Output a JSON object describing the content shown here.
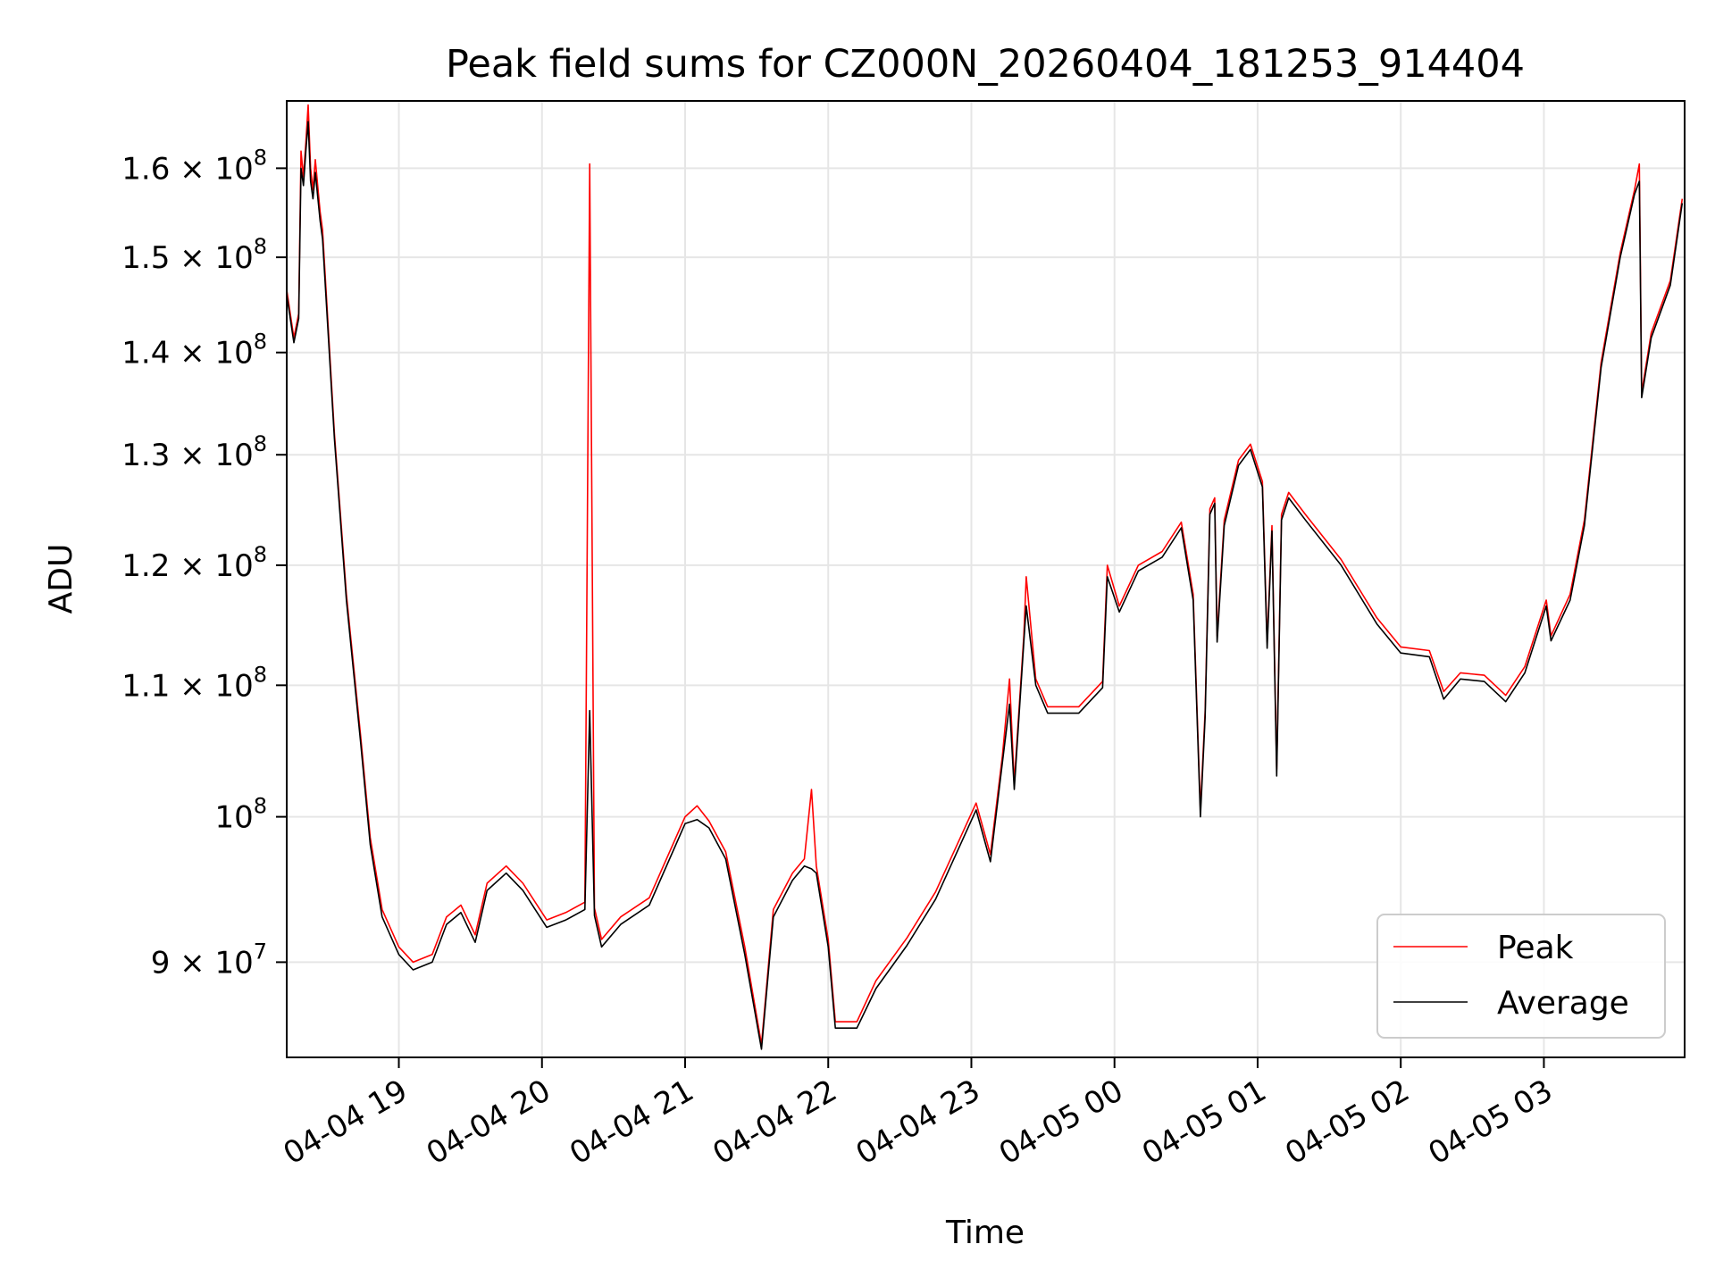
{
  "chart_data": {
    "type": "line",
    "title": "Peak field sums for CZ000N_20260404_181253_914404",
    "xlabel": "Time",
    "ylabel": "ADU",
    "yscale": "log",
    "xlim": [
      "2026-04-04 18:13",
      "2026-04-05 03:59"
    ],
    "ylim": [
      84000000,
      168000000
    ],
    "grid": true,
    "legend_position": "lower-right",
    "x_ticks": [
      {
        "value": "2026-04-04 19:00",
        "label": "04-04 19"
      },
      {
        "value": "2026-04-04 20:00",
        "label": "04-04 20"
      },
      {
        "value": "2026-04-04 21:00",
        "label": "04-04 21"
      },
      {
        "value": "2026-04-04 22:00",
        "label": "04-04 22"
      },
      {
        "value": "2026-04-04 23:00",
        "label": "04-04 23"
      },
      {
        "value": "2026-04-05 00:00",
        "label": "04-05 00"
      },
      {
        "value": "2026-04-05 01:00",
        "label": "04-05 01"
      },
      {
        "value": "2026-04-05 02:00",
        "label": "04-05 02"
      },
      {
        "value": "2026-04-05 03:00",
        "label": "04-05 03"
      }
    ],
    "y_ticks": [
      {
        "value": 90000000,
        "mant": "9",
        "sep": " × ",
        "exp": "7"
      },
      {
        "value": 100000000,
        "mant": "",
        "sep": "",
        "exp": "8"
      },
      {
        "value": 110000000,
        "mant": "1.1",
        "sep": " × ",
        "exp": "8"
      },
      {
        "value": 120000000,
        "mant": "1.2",
        "sep": " × ",
        "exp": "8"
      },
      {
        "value": 130000000,
        "mant": "1.3",
        "sep": " × ",
        "exp": "8"
      },
      {
        "value": 140000000,
        "mant": "1.4",
        "sep": " × ",
        "exp": "8"
      },
      {
        "value": 150000000,
        "mant": "1.5",
        "sep": " × ",
        "exp": "8"
      },
      {
        "value": 160000000,
        "mant": "1.6",
        "sep": " × ",
        "exp": "8"
      }
    ],
    "series": [
      {
        "name": "Peak",
        "color": "#ff0000",
        "points": [
          [
            "2026-04-04 18:13",
            146500000
          ],
          [
            "2026-04-04 18:16",
            141500000
          ],
          [
            "2026-04-04 18:18",
            144000000
          ],
          [
            "2026-04-04 18:19",
            162000000
          ],
          [
            "2026-04-04 18:20",
            159000000
          ],
          [
            "2026-04-04 18:21",
            163000000
          ],
          [
            "2026-04-04 18:22",
            167500000
          ],
          [
            "2026-04-04 18:23",
            160000000
          ],
          [
            "2026-04-04 18:24",
            157500000
          ],
          [
            "2026-04-04 18:25",
            161000000
          ],
          [
            "2026-04-04 18:27",
            155000000
          ],
          [
            "2026-04-04 18:28",
            153000000
          ],
          [
            "2026-04-04 18:33",
            132000000
          ],
          [
            "2026-04-04 18:38",
            117500000
          ],
          [
            "2026-04-04 18:44",
            106000000
          ],
          [
            "2026-04-04 18:48",
            98500000
          ],
          [
            "2026-04-04 18:53",
            93500000
          ],
          [
            "2026-04-04 19:00",
            91000000
          ],
          [
            "2026-04-04 19:06",
            90000000
          ],
          [
            "2026-04-04 19:14",
            90500000
          ],
          [
            "2026-04-04 19:20",
            93000000
          ],
          [
            "2026-04-04 19:26",
            93800000
          ],
          [
            "2026-04-04 19:32",
            91800000
          ],
          [
            "2026-04-04 19:37",
            95300000
          ],
          [
            "2026-04-04 19:45",
            96500000
          ],
          [
            "2026-04-04 19:52",
            95300000
          ],
          [
            "2026-04-04 20:02",
            92800000
          ],
          [
            "2026-04-04 20:10",
            93300000
          ],
          [
            "2026-04-04 20:18",
            94000000
          ],
          [
            "2026-04-04 20:20",
            160500000
          ],
          [
            "2026-04-04 20:22",
            93600000
          ],
          [
            "2026-04-04 20:25",
            91500000
          ],
          [
            "2026-04-04 20:33",
            93000000
          ],
          [
            "2026-04-04 20:45",
            94300000
          ],
          [
            "2026-04-04 21:00",
            100000000
          ],
          [
            "2026-04-04 21:05",
            100800000
          ],
          [
            "2026-04-04 21:10",
            99700000
          ],
          [
            "2026-04-04 21:17",
            97500000
          ],
          [
            "2026-04-04 21:25",
            91000000
          ],
          [
            "2026-04-04 21:32",
            84800000
          ],
          [
            "2026-04-04 21:37",
            93500000
          ],
          [
            "2026-04-04 21:45",
            96000000
          ],
          [
            "2026-04-04 21:50",
            97000000
          ],
          [
            "2026-04-04 21:53",
            102000000
          ],
          [
            "2026-04-04 21:55",
            96500000
          ],
          [
            "2026-04-04 22:00",
            91500000
          ],
          [
            "2026-04-04 22:03",
            86200000
          ],
          [
            "2026-04-04 22:12",
            86200000
          ],
          [
            "2026-04-04 22:20",
            88800000
          ],
          [
            "2026-04-04 22:33",
            91600000
          ],
          [
            "2026-04-04 22:45",
            94700000
          ],
          [
            "2026-04-04 23:02",
            101000000
          ],
          [
            "2026-04-04 23:08",
            97300000
          ],
          [
            "2026-04-04 23:13",
            104500000
          ],
          [
            "2026-04-04 23:16",
            110500000
          ],
          [
            "2026-04-04 23:18",
            102500000
          ],
          [
            "2026-04-04 23:22",
            114000000
          ],
          [
            "2026-04-04 23:23",
            119000000
          ],
          [
            "2026-04-04 23:27",
            110500000
          ],
          [
            "2026-04-04 23:32",
            108300000
          ],
          [
            "2026-04-04 23:45",
            108300000
          ],
          [
            "2026-04-04 23:55",
            110300000
          ],
          [
            "2026-04-04 23:57",
            120000000
          ],
          [
            "2026-04-05 00:02",
            116500000
          ],
          [
            "2026-04-05 00:10",
            120000000
          ],
          [
            "2026-04-05 00:20",
            121200000
          ],
          [
            "2026-04-05 00:28",
            123800000
          ],
          [
            "2026-04-05 00:33",
            117500000
          ],
          [
            "2026-04-05 00:36",
            100500000
          ],
          [
            "2026-04-05 00:38",
            108000000
          ],
          [
            "2026-04-05 00:40",
            125000000
          ],
          [
            "2026-04-05 00:42",
            126000000
          ],
          [
            "2026-04-05 00:43",
            114000000
          ],
          [
            "2026-04-05 00:46",
            124000000
          ],
          [
            "2026-04-05 00:52",
            129500000
          ],
          [
            "2026-04-05 00:57",
            131000000
          ],
          [
            "2026-04-05 01:02",
            127500000
          ],
          [
            "2026-04-05 01:04",
            113500000
          ],
          [
            "2026-04-05 01:06",
            123500000
          ],
          [
            "2026-04-05 01:08",
            103500000
          ],
          [
            "2026-04-05 01:10",
            124500000
          ],
          [
            "2026-04-05 01:13",
            126500000
          ],
          [
            "2026-04-05 01:20",
            124500000
          ],
          [
            "2026-04-05 01:35",
            120500000
          ],
          [
            "2026-04-05 01:50",
            115500000
          ],
          [
            "2026-04-05 02:00",
            113100000
          ],
          [
            "2026-04-05 02:12",
            112800000
          ],
          [
            "2026-04-05 02:18",
            109500000
          ],
          [
            "2026-04-05 02:25",
            111000000
          ],
          [
            "2026-04-05 02:35",
            110800000
          ],
          [
            "2026-04-05 02:44",
            109200000
          ],
          [
            "2026-04-05 02:52",
            111500000
          ],
          [
            "2026-04-05 03:01",
            117000000
          ],
          [
            "2026-04-05 03:03",
            114000000
          ],
          [
            "2026-04-05 03:11",
            117500000
          ],
          [
            "2026-04-05 03:17",
            124000000
          ],
          [
            "2026-04-05 03:24",
            139000000
          ],
          [
            "2026-04-05 03:32",
            150500000
          ],
          [
            "2026-04-05 03:38",
            157500000
          ],
          [
            "2026-04-05 03:40",
            160500000
          ],
          [
            "2026-04-05 03:41",
            136000000
          ],
          [
            "2026-04-05 03:45",
            142000000
          ],
          [
            "2026-04-05 03:53",
            147500000
          ],
          [
            "2026-04-05 03:58",
            156500000
          ]
        ]
      },
      {
        "name": "Average",
        "color": "#000000",
        "points": [
          [
            "2026-04-04 18:13",
            146000000
          ],
          [
            "2026-04-04 18:16",
            141000000
          ],
          [
            "2026-04-04 18:18",
            143500000
          ],
          [
            "2026-04-04 18:19",
            160000000
          ],
          [
            "2026-04-04 18:20",
            158000000
          ],
          [
            "2026-04-04 18:21",
            162000000
          ],
          [
            "2026-04-04 18:22",
            165500000
          ],
          [
            "2026-04-04 18:23",
            158500000
          ],
          [
            "2026-04-04 18:24",
            156500000
          ],
          [
            "2026-04-04 18:25",
            159500000
          ],
          [
            "2026-04-04 18:27",
            154000000
          ],
          [
            "2026-04-04 18:28",
            152000000
          ],
          [
            "2026-04-04 18:33",
            131500000
          ],
          [
            "2026-04-04 18:38",
            117000000
          ],
          [
            "2026-04-04 18:44",
            105500000
          ],
          [
            "2026-04-04 18:48",
            98000000
          ],
          [
            "2026-04-04 18:53",
            93000000
          ],
          [
            "2026-04-04 19:00",
            90500000
          ],
          [
            "2026-04-04 19:06",
            89500000
          ],
          [
            "2026-04-04 19:14",
            90000000
          ],
          [
            "2026-04-04 19:20",
            92500000
          ],
          [
            "2026-04-04 19:26",
            93300000
          ],
          [
            "2026-04-04 19:32",
            91300000
          ],
          [
            "2026-04-04 19:37",
            94800000
          ],
          [
            "2026-04-04 19:45",
            96000000
          ],
          [
            "2026-04-04 19:52",
            94800000
          ],
          [
            "2026-04-04 20:02",
            92300000
          ],
          [
            "2026-04-04 20:10",
            92800000
          ],
          [
            "2026-04-04 20:18",
            93500000
          ],
          [
            "2026-04-04 20:20",
            108000000
          ],
          [
            "2026-04-04 20:22",
            93100000
          ],
          [
            "2026-04-04 20:25",
            91000000
          ],
          [
            "2026-04-04 20:33",
            92500000
          ],
          [
            "2026-04-04 20:45",
            93800000
          ],
          [
            "2026-04-04 21:00",
            99500000
          ],
          [
            "2026-04-04 21:05",
            99800000
          ],
          [
            "2026-04-04 21:10",
            99200000
          ],
          [
            "2026-04-04 21:17",
            97000000
          ],
          [
            "2026-04-04 21:25",
            90500000
          ],
          [
            "2026-04-04 21:32",
            84500000
          ],
          [
            "2026-04-04 21:37",
            93000000
          ],
          [
            "2026-04-04 21:45",
            95500000
          ],
          [
            "2026-04-04 21:50",
            96500000
          ],
          [
            "2026-04-04 21:53",
            96300000
          ],
          [
            "2026-04-04 21:55",
            96000000
          ],
          [
            "2026-04-04 22:00",
            91000000
          ],
          [
            "2026-04-04 22:03",
            85800000
          ],
          [
            "2026-04-04 22:12",
            85800000
          ],
          [
            "2026-04-04 22:20",
            88300000
          ],
          [
            "2026-04-04 22:33",
            91100000
          ],
          [
            "2026-04-04 22:45",
            94200000
          ],
          [
            "2026-04-04 23:02",
            100500000
          ],
          [
            "2026-04-04 23:08",
            96800000
          ],
          [
            "2026-04-04 23:13",
            104000000
          ],
          [
            "2026-04-04 23:16",
            108500000
          ],
          [
            "2026-04-04 23:18",
            102000000
          ],
          [
            "2026-04-04 23:22",
            113500000
          ],
          [
            "2026-04-04 23:23",
            116500000
          ],
          [
            "2026-04-04 23:27",
            110000000
          ],
          [
            "2026-04-04 23:32",
            107800000
          ],
          [
            "2026-04-04 23:45",
            107800000
          ],
          [
            "2026-04-04 23:55",
            109800000
          ],
          [
            "2026-04-04 23:57",
            119000000
          ],
          [
            "2026-04-05 00:02",
            116000000
          ],
          [
            "2026-04-05 00:10",
            119500000
          ],
          [
            "2026-04-05 00:20",
            120700000
          ],
          [
            "2026-04-05 00:28",
            123300000
          ],
          [
            "2026-04-05 00:33",
            117000000
          ],
          [
            "2026-04-05 00:36",
            100000000
          ],
          [
            "2026-04-05 00:38",
            107500000
          ],
          [
            "2026-04-05 00:40",
            124500000
          ],
          [
            "2026-04-05 00:42",
            125500000
          ],
          [
            "2026-04-05 00:43",
            113500000
          ],
          [
            "2026-04-05 00:46",
            123500000
          ],
          [
            "2026-04-05 00:52",
            129000000
          ],
          [
            "2026-04-05 00:57",
            130500000
          ],
          [
            "2026-04-05 01:02",
            127000000
          ],
          [
            "2026-04-05 01:04",
            113000000
          ],
          [
            "2026-04-05 01:06",
            123000000
          ],
          [
            "2026-04-05 01:08",
            103000000
          ],
          [
            "2026-04-05 01:10",
            124000000
          ],
          [
            "2026-04-05 01:13",
            126000000
          ],
          [
            "2026-04-05 01:20",
            124000000
          ],
          [
            "2026-04-05 01:35",
            120000000
          ],
          [
            "2026-04-05 01:50",
            115000000
          ],
          [
            "2026-04-05 02:00",
            112600000
          ],
          [
            "2026-04-05 02:12",
            112300000
          ],
          [
            "2026-04-05 02:18",
            108900000
          ],
          [
            "2026-04-05 02:25",
            110500000
          ],
          [
            "2026-04-05 02:35",
            110300000
          ],
          [
            "2026-04-05 02:44",
            108700000
          ],
          [
            "2026-04-05 02:52",
            111000000
          ],
          [
            "2026-04-05 03:01",
            116500000
          ],
          [
            "2026-04-05 03:03",
            113600000
          ],
          [
            "2026-04-05 03:11",
            117000000
          ],
          [
            "2026-04-05 03:17",
            123500000
          ],
          [
            "2026-04-05 03:24",
            138500000
          ],
          [
            "2026-04-05 03:32",
            150000000
          ],
          [
            "2026-04-05 03:38",
            157000000
          ],
          [
            "2026-04-05 03:40",
            158500000
          ],
          [
            "2026-04-05 03:41",
            135500000
          ],
          [
            "2026-04-05 03:45",
            141500000
          ],
          [
            "2026-04-05 03:53",
            147000000
          ],
          [
            "2026-04-05 03:58",
            156000000
          ]
        ]
      }
    ]
  }
}
